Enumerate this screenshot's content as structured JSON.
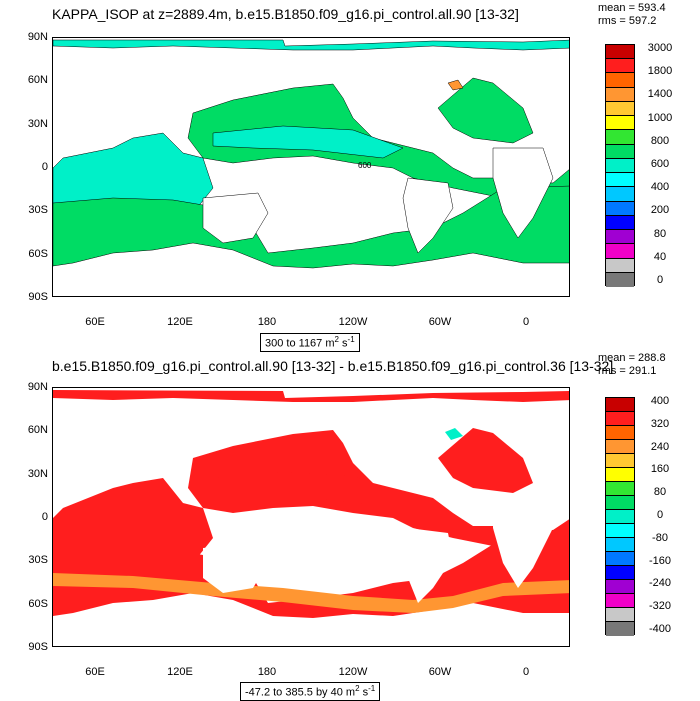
{
  "panel1": {
    "title": "KAPPA_ISOP at z=2889.4m, b.e15.B1850.f09_g16.pi_control.all.90 [13-32]",
    "mean": "mean = 593.4",
    "rms": "rms = 597.2",
    "range_text": "300 to 1167 m",
    "range_sup": "2",
    "range_tail": " s",
    "range_sup2": "-1",
    "contour_label": "600",
    "colorbar_labels": [
      "3000",
      "1800",
      "1400",
      "1000",
      "800",
      "600",
      "400",
      "200",
      "80",
      "40",
      "0"
    ],
    "colorbar_colors": [
      "#c80000",
      "#ff1e1e",
      "#ff6400",
      "#ff9632",
      "#ffc832",
      "#ffff00",
      "#32e632",
      "#00dc64",
      "#00f0c8",
      "#00ffff",
      "#00c8ff",
      "#0078ff",
      "#0000ff",
      "#a000d2",
      "#f000c8",
      "#c8c8c8",
      "#787878"
    ]
  },
  "panel2": {
    "title": "b.e15.B1850.f09_g16.pi_control.all.90 [13-32] - b.e15.B1850.f09_g16.pi_control.36 [13-32]",
    "mean": "mean = 288.8",
    "rms": "rms = 291.1",
    "range_text": "-47.2 to 385.5 by 40 m",
    "range_sup": "2",
    "range_tail": " s",
    "range_sup2": "-1",
    "colorbar_labels": [
      "400",
      "320",
      "240",
      "160",
      "80",
      "0",
      "-80",
      "-160",
      "-240",
      "-320",
      "-400"
    ],
    "colorbar_colors": [
      "#c80000",
      "#ff1e1e",
      "#ff6400",
      "#ff9632",
      "#ffc832",
      "#ffff00",
      "#32e632",
      "#00dc64",
      "#00f0c8",
      "#00ffff",
      "#00c8ff",
      "#0078ff",
      "#0000ff",
      "#a000d2",
      "#f000c8",
      "#c8c8c8",
      "#787878"
    ]
  },
  "axes": {
    "lat_labels": [
      "90N",
      "60N",
      "30N",
      "0",
      "30S",
      "60S",
      "90S"
    ],
    "lon_labels": [
      "60E",
      "120E",
      "180",
      "120W",
      "60W",
      "0"
    ]
  }
}
